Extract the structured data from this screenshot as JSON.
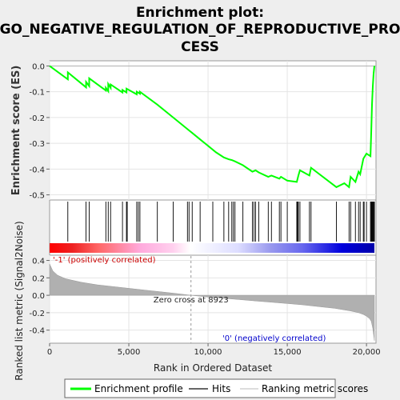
{
  "title_line1": "Enrichment plot:",
  "title_line2": "GO_NEGATIVE_REGULATION_OF_REPRODUCTIVE_PRO",
  "title_line3": "CESS",
  "colors": {
    "enrichment": "#00ff00",
    "hits": "#000000",
    "metric_fill": "#b0b0b0",
    "positive_text": "#cc0000",
    "negative_text": "#0000cc",
    "bar_red": "#ff0000",
    "bar_blue": "#0000ff"
  },
  "chart_data": {
    "type": "line",
    "top_panel": {
      "ylabel": "Enrichment score (ES)",
      "ylim": [
        -0.52,
        0.02
      ],
      "yticks": [
        "0.0",
        "-0.1",
        "-0.2",
        "-0.3",
        "-0.4",
        "-0.5"
      ],
      "ytick_values": [
        0.0,
        -0.1,
        -0.2,
        -0.3,
        -0.4,
        -0.5
      ],
      "series": [
        {
          "name": "Enrichment profile",
          "x": [
            0,
            1150,
            1151,
            2300,
            2301,
            2500,
            2501,
            3550,
            3551,
            3700,
            3701,
            3850,
            3851,
            4600,
            4601,
            4850,
            4851,
            5500,
            5501,
            5700,
            5701,
            6800,
            7800,
            8700,
            8800,
            9000,
            9500,
            10000,
            10500,
            11000,
            11300,
            11500,
            11700,
            12200,
            12800,
            13000,
            13200,
            13800,
            14000,
            14500,
            14600,
            15000,
            15600,
            15700,
            15800,
            16400,
            16500,
            18100,
            18600,
            18900,
            19000,
            19300,
            19500,
            19600,
            19800,
            20000,
            20250,
            20300,
            20350,
            20400,
            20450,
            20500
          ],
          "y": [
            0.0,
            -0.052,
            -0.025,
            -0.083,
            -0.062,
            -0.078,
            -0.048,
            -0.095,
            -0.085,
            -0.098,
            -0.07,
            -0.085,
            -0.072,
            -0.103,
            -0.093,
            -0.103,
            -0.088,
            -0.11,
            -0.1,
            -0.108,
            -0.1,
            -0.15,
            -0.2,
            -0.245,
            -0.25,
            -0.26,
            -0.285,
            -0.31,
            -0.335,
            -0.355,
            -0.362,
            -0.365,
            -0.37,
            -0.385,
            -0.41,
            -0.405,
            -0.413,
            -0.43,
            -0.425,
            -0.437,
            -0.43,
            -0.445,
            -0.45,
            -0.425,
            -0.405,
            -0.425,
            -0.395,
            -0.47,
            -0.455,
            -0.47,
            -0.43,
            -0.45,
            -0.41,
            -0.42,
            -0.36,
            -0.34,
            -0.35,
            -0.25,
            -0.15,
            -0.08,
            -0.03,
            0.0
          ]
        }
      ]
    },
    "hits_panel": {
      "hit_positions": [
        1150,
        2300,
        2500,
        3550,
        3700,
        3850,
        4600,
        4850,
        4900,
        5500,
        5600,
        5700,
        6800,
        7800,
        8700,
        8800,
        9000,
        9500,
        10300,
        11000,
        11300,
        11500,
        11600,
        11700,
        12200,
        12800,
        12900,
        13000,
        13200,
        13800,
        14000,
        14500,
        14600,
        15000,
        15600,
        15650,
        15700,
        15800,
        16400,
        16500,
        18100,
        18900,
        19000,
        19300,
        19500,
        19600,
        19800,
        19850,
        20000,
        20250,
        20300,
        20320,
        20350,
        20370,
        20400,
        20450,
        20480,
        20500
      ]
    },
    "bottom_panel": {
      "ylabel": "Ranked list metric (Signal2Noise)",
      "xlabel": "Rank in Ordered Dataset",
      "ylim": [
        -0.55,
        0.46
      ],
      "yticks": [
        "0.4",
        "0.2",
        "0.0",
        "-0.2",
        "-0.4"
      ],
      "ytick_values": [
        0.4,
        0.2,
        0.0,
        -0.2,
        -0.4
      ],
      "xlim": [
        0,
        20600
      ],
      "xticks": [
        "0",
        "5,000",
        "10,000",
        "15,000",
        "20,000"
      ],
      "xtick_values": [
        0,
        5000,
        10000,
        15000,
        20000
      ],
      "metric_x": [
        0,
        200,
        500,
        1000,
        2000,
        3000,
        4000,
        5000,
        6000,
        7000,
        8000,
        8923,
        10000,
        11000,
        12000,
        13000,
        14000,
        15000,
        16000,
        17000,
        18000,
        19000,
        19500,
        19800,
        20000,
        20200,
        20300,
        20400,
        20500
      ],
      "metric_y": [
        0.36,
        0.28,
        0.23,
        0.19,
        0.15,
        0.12,
        0.1,
        0.08,
        0.06,
        0.04,
        0.02,
        0.0,
        -0.02,
        -0.035,
        -0.05,
        -0.065,
        -0.08,
        -0.095,
        -0.11,
        -0.13,
        -0.15,
        -0.18,
        -0.2,
        -0.22,
        -0.24,
        -0.27,
        -0.3,
        -0.38,
        -0.52
      ],
      "zero_cross": 8923,
      "zero_cross_label": "Zero cross at 8923",
      "positive_label": "'-1' (positively correlated)",
      "negative_label": "'0' (negatively correlated)"
    },
    "legend": [
      "Enrichment profile",
      "Hits",
      "Ranking metric scores"
    ]
  }
}
